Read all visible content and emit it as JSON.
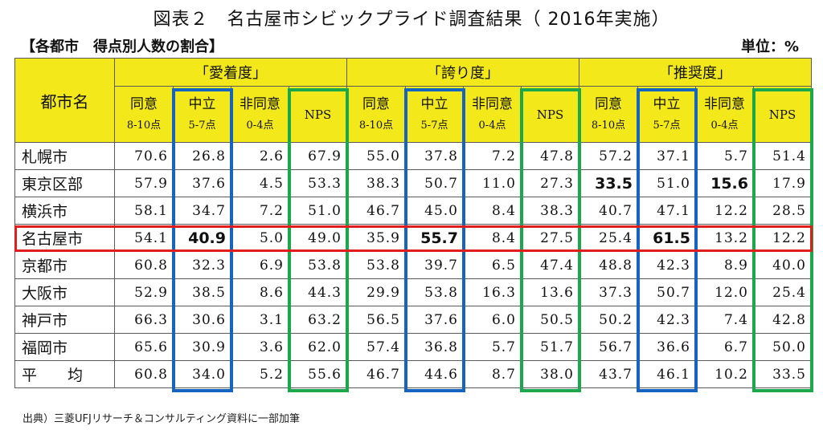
{
  "title": "図表２　名古屋市シビックプライド調査結果（ 2016年実施）",
  "subtitle_left": "【各都市　得点別人数の割合】",
  "subtitle_right": "単位：%",
  "table": {
    "city_header": "都市名",
    "groups": [
      "「愛着度」",
      "「誇り度」",
      "「推奨度」"
    ],
    "subcolumns": [
      {
        "l1": "同意",
        "l2": "8-10点"
      },
      {
        "l1": "中立",
        "l2": "5-7点"
      },
      {
        "l1": "非同意",
        "l2": "0-4点"
      },
      {
        "l1": "NPS",
        "l2": ""
      }
    ],
    "rows": [
      {
        "city": "札幌市",
        "values": [
          "70.6",
          "26.8",
          "2.6",
          "67.9",
          "55.0",
          "37.8",
          "7.2",
          "47.8",
          "57.2",
          "37.1",
          "5.7",
          "51.4"
        ]
      },
      {
        "city": "東京区部",
        "values": [
          "57.9",
          "37.6",
          "4.5",
          "53.3",
          "38.3",
          "50.7",
          "11.0",
          "27.3",
          "33.5",
          "51.0",
          "15.6",
          "17.9"
        ]
      },
      {
        "city": "横浜市",
        "values": [
          "58.1",
          "34.7",
          "7.2",
          "51.0",
          "46.7",
          "45.0",
          "8.4",
          "38.3",
          "40.7",
          "47.1",
          "12.2",
          "28.5"
        ]
      },
      {
        "city": "名古屋市",
        "values": [
          "54.1",
          "40.9",
          "5.0",
          "49.0",
          "35.9",
          "55.7",
          "8.4",
          "27.5",
          "25.4",
          "61.5",
          "13.2",
          "12.2"
        ]
      },
      {
        "city": "京都市",
        "values": [
          "60.8",
          "32.3",
          "6.9",
          "53.8",
          "53.8",
          "39.7",
          "6.5",
          "47.4",
          "48.8",
          "42.3",
          "8.9",
          "40.0"
        ]
      },
      {
        "city": "大阪市",
        "values": [
          "52.9",
          "38.5",
          "8.6",
          "44.3",
          "29.9",
          "53.8",
          "16.3",
          "13.6",
          "37.3",
          "50.7",
          "12.0",
          "25.4"
        ]
      },
      {
        "city": "神戸市",
        "values": [
          "66.3",
          "30.6",
          "3.1",
          "63.2",
          "56.5",
          "37.6",
          "6.0",
          "50.5",
          "50.2",
          "42.3",
          "7.4",
          "42.8"
        ]
      },
      {
        "city": "福岡市",
        "values": [
          "65.6",
          "30.9",
          "3.6",
          "62.0",
          "57.4",
          "36.8",
          "5.7",
          "51.7",
          "56.7",
          "36.6",
          "6.7",
          "50.0"
        ]
      },
      {
        "city": "平　　均",
        "values": [
          "60.8",
          "34.0",
          "5.2",
          "55.6",
          "46.7",
          "44.6",
          "8.7",
          "38.0",
          "43.7",
          "46.1",
          "10.2",
          "33.5"
        ]
      }
    ],
    "bold_cells": [
      [
        1,
        8
      ],
      [
        1,
        10
      ],
      [
        3,
        1
      ],
      [
        3,
        5
      ],
      [
        3,
        9
      ]
    ],
    "box_colors": {
      "neutral": "#1565c0",
      "nps": "#1aa84a",
      "highlight_row": "#e01e1e",
      "header_bg": "#f3e91a"
    }
  },
  "source": "出典）三菱UFJリサーチ＆コンサルティング資料に一部加筆"
}
